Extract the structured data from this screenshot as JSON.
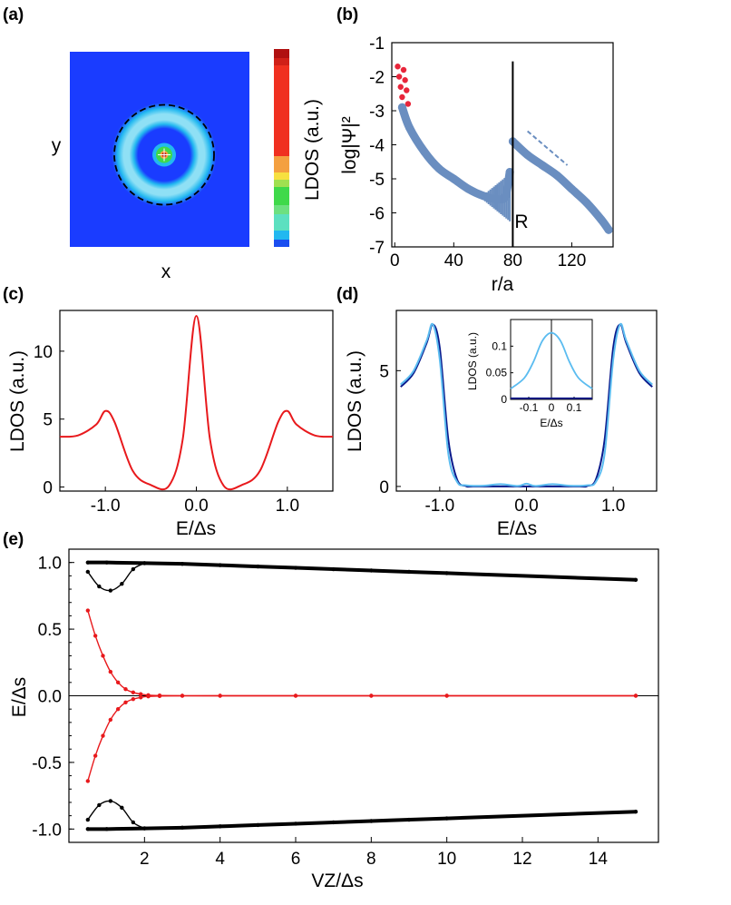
{
  "chart_data": [
    {
      "panel": "(a)",
      "type": "heatmap",
      "xlabel": "x",
      "ylabel": "y",
      "colorbar_label": "LDOS (a.u.)",
      "colors": [
        "#1a3cff",
        "#22b8f0",
        "#8fe0f5",
        "#3fd94a",
        "#f4a040",
        "#f03020",
        "#b01010"
      ],
      "ring_radius_fraction": 0.56,
      "dashed_circle": true
    },
    {
      "panel": "(b)",
      "type": "scatter",
      "xlabel": "r/a",
      "ylabel": "log|Ψ|²",
      "xlim": [
        -2,
        148
      ],
      "ylim": [
        -7,
        -1
      ],
      "xticks": [
        "0",
        "40",
        "80",
        "120"
      ],
      "yticks": [
        "-1",
        "-2",
        "-3",
        "-4",
        "-5",
        "-6",
        "-7"
      ],
      "annotation": "R",
      "vertical_line_x": 80,
      "series": [
        {
          "color": "#e8253a",
          "x": [
            2,
            3,
            4,
            5,
            6,
            7,
            8,
            9
          ],
          "y": [
            -1.7,
            -2.0,
            -2.3,
            -2.6,
            -1.8,
            -2.1,
            -2.4,
            -2.8
          ]
        },
        {
          "color": "#6a8ec0",
          "x": [
            5,
            10,
            20,
            30,
            40,
            50,
            60,
            70,
            75,
            78,
            80,
            90,
            100,
            110,
            120,
            130,
            140,
            145
          ],
          "y": [
            -2.9,
            -3.5,
            -4.2,
            -4.7,
            -5.0,
            -5.3,
            -5.5,
            -5.6,
            -5.5,
            -4.8,
            -3.9,
            -4.3,
            -4.6,
            -4.9,
            -5.3,
            -5.7,
            -6.2,
            -6.5
          ]
        }
      ],
      "dashed_line": {
        "x": [
          90,
          117
        ],
        "y": [
          -3.6,
          -4.6
        ]
      }
    },
    {
      "panel": "(c)",
      "type": "line",
      "xlabel": "E/Δs",
      "ylabel": "LDOS (a.u.)",
      "xlim": [
        -1.5,
        1.5
      ],
      "ylim": [
        -0.3,
        13
      ],
      "xticks": [
        "-1.0",
        "0.0",
        "1.0"
      ],
      "yticks": [
        "0",
        "5",
        "10"
      ],
      "series": [
        {
          "color": "#e8191c",
          "x": [
            -1.5,
            -1.3,
            -1.1,
            -1.0,
            -0.9,
            -0.7,
            -0.5,
            -0.3,
            -0.15,
            0,
            0.15,
            0.3,
            0.5,
            0.7,
            0.9,
            1.0,
            1.1,
            1.3,
            1.5
          ],
          "y": [
            3.7,
            3.8,
            4.6,
            5.6,
            4.8,
            1.2,
            0.15,
            0.1,
            3.5,
            12.6,
            3.5,
            0.1,
            0.15,
            1.2,
            4.8,
            5.6,
            4.6,
            3.8,
            3.7
          ]
        }
      ]
    },
    {
      "panel": "(d)",
      "type": "line",
      "xlabel": "E/Δs",
      "ylabel": "LDOS (a.u.)",
      "xlim": [
        -1.5,
        1.5
      ],
      "ylim": [
        -0.2,
        7.6
      ],
      "xticks": [
        "-1.0",
        "0.0",
        "1.0"
      ],
      "yticks": [
        "0",
        "5"
      ],
      "series": [
        {
          "color": "#0a1a8c",
          "x": [
            -1.45,
            -1.3,
            -1.15,
            -1.08,
            -1.0,
            -0.9,
            -0.8,
            -0.7,
            -0.6,
            0,
            0.6,
            0.7,
            0.8,
            0.9,
            1.0,
            1.08,
            1.15,
            1.3,
            1.45
          ],
          "y": [
            4.3,
            4.9,
            6.2,
            7.0,
            6.0,
            2.0,
            0.3,
            0.02,
            0.0,
            0.0,
            0.0,
            0.02,
            0.3,
            2.0,
            6.0,
            7.0,
            6.2,
            4.9,
            4.3
          ]
        },
        {
          "color": "#5bbcf0",
          "x": [
            -1.45,
            -1.3,
            -1.15,
            -1.08,
            -1.0,
            -0.9,
            -0.8,
            -0.7,
            -0.5,
            -0.3,
            -0.1,
            0,
            0.1,
            0.3,
            0.5,
            0.7,
            0.8,
            0.9,
            1.0,
            1.08,
            1.15,
            1.3,
            1.45
          ],
          "y": [
            4.4,
            5.0,
            6.3,
            7.0,
            5.5,
            1.4,
            0.2,
            0.05,
            0.03,
            0.1,
            0.02,
            0.12,
            0.02,
            0.1,
            0.03,
            0.05,
            0.2,
            1.4,
            5.5,
            7.0,
            6.3,
            5.0,
            4.4
          ]
        }
      ],
      "inset": {
        "xlabel": "E/Δs",
        "ylabel": "LDOS (a.u.)",
        "xlim": [
          -0.18,
          0.18
        ],
        "ylim": [
          0,
          0.15
        ],
        "xticks": [
          "-0.1",
          "0",
          "0.1"
        ],
        "yticks": [
          "0",
          "0.05",
          "0.1"
        ],
        "series": [
          {
            "color": "#5bbcf0",
            "x": [
              -0.18,
              -0.12,
              -0.08,
              -0.04,
              0,
              0.04,
              0.08,
              0.12,
              0.18
            ],
            "y": [
              0.02,
              0.04,
              0.07,
              0.11,
              0.125,
              0.11,
              0.07,
              0.04,
              0.02
            ]
          },
          {
            "color": "#0a1a8c",
            "x": [
              -0.18,
              -0.1,
              0,
              0.1,
              0.18
            ],
            "y": [
              0.002,
              0.002,
              0.002,
              0.002,
              0.002
            ]
          }
        ]
      }
    },
    {
      "panel": "(e)",
      "type": "line",
      "xlabel": "VZ/Δs",
      "ylabel": "E/Δs",
      "xlim": [
        0,
        15.6
      ],
      "ylim": [
        -1.1,
        1.1
      ],
      "xticks": [
        "2",
        "4",
        "6",
        "8",
        "10",
        "12",
        "14"
      ],
      "yticks": [
        "1.0",
        "0.5",
        "0.0",
        "-0.5",
        "-1.0"
      ],
      "series": [
        {
          "color": "#000000",
          "x": [
            0.5,
            1,
            2,
            3,
            4,
            5,
            6,
            7,
            8,
            9,
            10,
            15
          ],
          "y": [
            1.0,
            1.0,
            0.995,
            0.99,
            0.98,
            0.97,
            0.96,
            0.95,
            0.94,
            0.93,
            0.92,
            0.87
          ]
        },
        {
          "color": "#000000",
          "x": [
            0.5,
            0.8,
            1.1,
            1.4,
            1.7,
            2.0
          ],
          "y": [
            0.93,
            0.82,
            0.79,
            0.84,
            0.95,
            0.995
          ]
        },
        {
          "color": "#000000",
          "x": [
            0.5,
            1,
            2,
            3,
            4,
            5,
            6,
            7,
            8,
            9,
            10,
            15
          ],
          "y": [
            -1.0,
            -1.0,
            -0.995,
            -0.99,
            -0.98,
            -0.97,
            -0.96,
            -0.95,
            -0.94,
            -0.93,
            -0.92,
            -0.87
          ]
        },
        {
          "color": "#000000",
          "x": [
            0.5,
            0.8,
            1.1,
            1.4,
            1.7,
            2.0
          ],
          "y": [
            -0.93,
            -0.82,
            -0.79,
            -0.84,
            -0.95,
            -0.995
          ]
        },
        {
          "color": "#e8191c",
          "x": [
            0.5,
            0.7,
            0.9,
            1.1,
            1.3,
            1.5,
            1.7,
            1.9,
            2.1,
            2.4,
            3,
            4,
            6,
            8,
            10,
            15
          ],
          "y": [
            0.64,
            0.45,
            0.3,
            0.18,
            0.1,
            0.05,
            0.025,
            0.012,
            0.005,
            0.002,
            0.0,
            0.0,
            0.0,
            0.0,
            0.0,
            0.0
          ]
        },
        {
          "color": "#e8191c",
          "x": [
            0.5,
            0.7,
            0.9,
            1.1,
            1.3,
            1.5,
            1.7,
            1.9,
            2.1,
            2.4,
            3,
            4,
            6,
            8,
            10,
            15
          ],
          "y": [
            -0.64,
            -0.45,
            -0.3,
            -0.18,
            -0.1,
            -0.05,
            -0.025,
            -0.012,
            -0.005,
            -0.002,
            0.0,
            0.0,
            0.0,
            0.0,
            0.0,
            0.0
          ]
        }
      ]
    }
  ]
}
